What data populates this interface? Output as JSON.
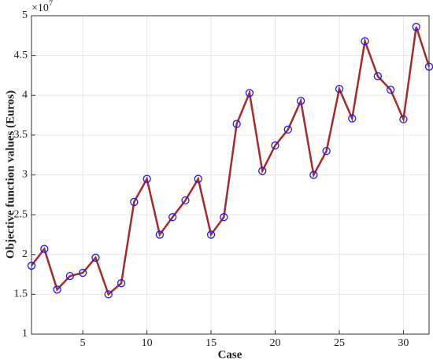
{
  "chart_data": {
    "type": "line",
    "x_label": "Case",
    "y_label": "Objective function values (Euros)",
    "y_scale_base": "×10",
    "y_scale_exponent": "7",
    "x": [
      1,
      2,
      3,
      4,
      5,
      6,
      7,
      8,
      9,
      10,
      11,
      12,
      13,
      14,
      15,
      16,
      17,
      18,
      19,
      20,
      21,
      22,
      23,
      24,
      25,
      26,
      27,
      28,
      29,
      30,
      31,
      32
    ],
    "series": [
      {
        "color": "#a52a2a",
        "marker_color": "#1a1aff",
        "values": [
          1.86,
          2.07,
          1.56,
          1.73,
          1.77,
          1.96,
          1.5,
          1.64,
          2.66,
          2.95,
          2.25,
          2.47,
          2.68,
          2.95,
          2.25,
          2.47,
          3.64,
          4.03,
          3.05,
          3.37,
          3.57,
          3.93,
          3.0,
          3.3,
          4.08,
          3.71,
          4.68,
          4.24,
          4.07,
          3.7,
          4.86,
          4.36
        ]
      }
    ],
    "xlim": [
      1,
      32
    ],
    "xticks": [
      5,
      10,
      15,
      20,
      25,
      30
    ],
    "ylim": [
      1,
      5
    ],
    "yticks": [
      1,
      1.5,
      2,
      2.5,
      3,
      3.5,
      4,
      4.5,
      5
    ],
    "grid": true
  }
}
